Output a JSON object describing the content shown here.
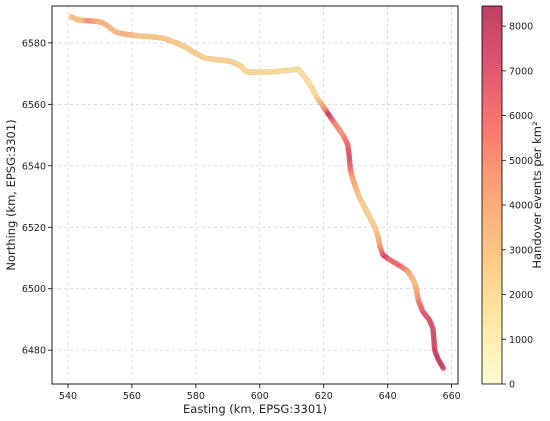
{
  "chart_data": {
    "type": "scatter",
    "title": "",
    "xlabel": "Easting (km, EPSG:3301)",
    "ylabel": "Northing (km, EPSG:3301)",
    "xlim": [
      535,
      662
    ],
    "ylim": [
      6469,
      6592
    ],
    "xticks": [
      540,
      560,
      580,
      600,
      620,
      640,
      660
    ],
    "yticks": [
      6480,
      6500,
      6520,
      6540,
      6560,
      6580
    ],
    "grid": true,
    "colorbar": {
      "label": "Handover events per km²",
      "min": 0,
      "max": 8450,
      "ticks": [
        0,
        1000,
        2000,
        3000,
        4000,
        5000,
        6000,
        7000,
        8000
      ],
      "colormap": "YlOrRd-magma-like",
      "colors": [
        "#fffbd3",
        "#fde9a3",
        "#fdc986",
        "#fba776",
        "#f97b70",
        "#e05870",
        "#bf3f63"
      ]
    },
    "route_vertices": [
      [
        541,
        6588.5
      ],
      [
        543,
        6587.5
      ],
      [
        546,
        6587.2
      ],
      [
        549,
        6587
      ],
      [
        551,
        6586.5
      ],
      [
        553,
        6585
      ],
      [
        555,
        6583.5
      ],
      [
        558,
        6582.8
      ],
      [
        562,
        6582.3
      ],
      [
        566,
        6582
      ],
      [
        570,
        6581.5
      ],
      [
        574,
        6580
      ],
      [
        577,
        6578.5
      ],
      [
        580,
        6576.5
      ],
      [
        583,
        6575
      ],
      [
        587,
        6574.5
      ],
      [
        591,
        6574
      ],
      [
        594,
        6572.5
      ],
      [
        596,
        6570.5
      ],
      [
        600,
        6570.5
      ],
      [
        604,
        6570.6
      ],
      [
        608,
        6571
      ],
      [
        612,
        6571.5
      ],
      [
        614,
        6569
      ],
      [
        616,
        6566
      ],
      [
        618,
        6562
      ],
      [
        620,
        6559
      ],
      [
        622,
        6556
      ],
      [
        624,
        6553
      ],
      [
        626,
        6550
      ],
      [
        627.5,
        6547
      ],
      [
        628,
        6543
      ],
      [
        628.3,
        6539
      ],
      [
        629,
        6536
      ],
      [
        630,
        6533
      ],
      [
        631,
        6530
      ],
      [
        632.5,
        6527
      ],
      [
        634.5,
        6523
      ],
      [
        636,
        6520
      ],
      [
        637,
        6517
      ],
      [
        637.5,
        6514
      ],
      [
        638.5,
        6511
      ],
      [
        640.5,
        6509.5
      ],
      [
        643,
        6508
      ],
      [
        646,
        6506
      ],
      [
        648,
        6503
      ],
      [
        649,
        6500
      ],
      [
        649.5,
        6496.5
      ],
      [
        651,
        6492.5
      ],
      [
        653,
        6490
      ],
      [
        654.2,
        6487
      ],
      [
        654.5,
        6483
      ],
      [
        654.7,
        6480
      ],
      [
        655.8,
        6477
      ],
      [
        657.5,
        6474
      ]
    ],
    "intensity_along_route": [
      [
        0.0,
        3000
      ],
      [
        0.02,
        2900
      ],
      [
        0.03,
        5200
      ],
      [
        0.05,
        3400
      ],
      [
        0.08,
        3300
      ],
      [
        0.1,
        3800
      ],
      [
        0.12,
        2800
      ],
      [
        0.18,
        2600
      ],
      [
        0.25,
        2300
      ],
      [
        0.32,
        2000
      ],
      [
        0.38,
        1800
      ],
      [
        0.42,
        1600
      ],
      [
        0.46,
        1700
      ],
      [
        0.49,
        4800
      ],
      [
        0.5,
        8300
      ],
      [
        0.52,
        5200
      ],
      [
        0.54,
        4500
      ],
      [
        0.56,
        6200
      ],
      [
        0.58,
        7200
      ],
      [
        0.6,
        6500
      ],
      [
        0.62,
        4200
      ],
      [
        0.64,
        3600
      ],
      [
        0.66,
        2600
      ],
      [
        0.69,
        2200
      ],
      [
        0.72,
        2600
      ],
      [
        0.74,
        3600
      ],
      [
        0.76,
        5600
      ],
      [
        0.77,
        8000
      ],
      [
        0.78,
        6000
      ],
      [
        0.8,
        6500
      ],
      [
        0.82,
        4000
      ],
      [
        0.84,
        3000
      ],
      [
        0.86,
        4200
      ],
      [
        0.88,
        6000
      ],
      [
        0.9,
        7000
      ],
      [
        0.93,
        7400
      ],
      [
        0.96,
        7600
      ],
      [
        0.98,
        8200
      ],
      [
        1.0,
        8000
      ]
    ]
  }
}
